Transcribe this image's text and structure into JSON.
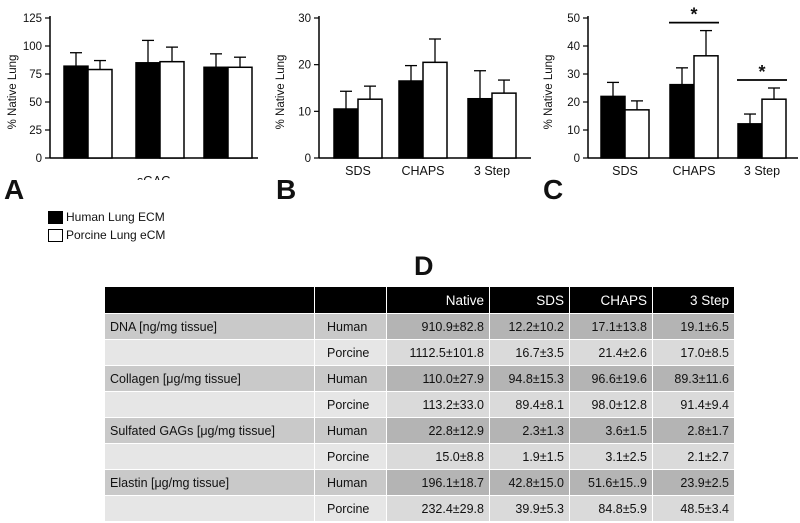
{
  "panel_letters": {
    "a": "A",
    "b": "B",
    "c": "C",
    "d": "D"
  },
  "legend": {
    "human": "Human Lung ECM",
    "porcine": "Porcine Lung eCM",
    "human_color": "#000000",
    "porcine_color": "#ffffff"
  },
  "chart_data": [
    {
      "id": "A",
      "type": "bar",
      "ylabel": "% Native Lung",
      "ylim": [
        0,
        125
      ],
      "yticks": [
        0,
        25,
        50,
        75,
        100,
        125
      ],
      "categories": [
        "",
        "",
        ""
      ],
      "xlabel": "sGAG",
      "series": [
        {
          "name": "Human Lung ECM",
          "values": [
            82,
            85,
            81
          ],
          "errors": [
            12,
            20,
            12
          ]
        },
        {
          "name": "Porcine Lung eCM",
          "values": [
            79,
            86,
            81
          ],
          "errors": [
            8,
            13,
            9
          ]
        }
      ],
      "significance": []
    },
    {
      "id": "B",
      "type": "bar",
      "ylabel": "% Native Lung",
      "ylim": [
        0,
        30
      ],
      "yticks": [
        0,
        10,
        20,
        30
      ],
      "categories": [
        "SDS",
        "CHAPS",
        "3 Step"
      ],
      "xlabel": "",
      "series": [
        {
          "name": "Human Lung ECM",
          "values": [
            10.5,
            16.5,
            12.7
          ],
          "errors": [
            3.8,
            3.3,
            6.0
          ]
        },
        {
          "name": "Porcine Lung eCM",
          "values": [
            12.6,
            20.5,
            13.9
          ],
          "errors": [
            2.8,
            5.0,
            2.8
          ]
        }
      ],
      "significance": []
    },
    {
      "id": "C",
      "type": "bar",
      "ylabel": "% Native Lung",
      "ylim": [
        0,
        50
      ],
      "yticks": [
        0,
        10,
        20,
        30,
        40,
        50
      ],
      "categories": [
        "SDS",
        "CHAPS",
        "3 Step"
      ],
      "xlabel": "",
      "series": [
        {
          "name": "Human Lung ECM",
          "values": [
            22,
            26.2,
            12.2
          ],
          "errors": [
            5,
            6,
            3.5
          ]
        },
        {
          "name": "Porcine Lung eCM",
          "values": [
            17.2,
            36.5,
            21
          ],
          "errors": [
            3.2,
            9,
            4
          ]
        }
      ],
      "significance": [
        {
          "category_index": 1,
          "label": "*"
        },
        {
          "category_index": 2,
          "label": "*"
        }
      ]
    }
  ],
  "table": {
    "headers": [
      "",
      "",
      "Native",
      "SDS",
      "CHAPS",
      "3 Step"
    ],
    "rows": [
      {
        "analyte": "DNA [ng/mg tissue]",
        "species": "Human",
        "values": [
          "910.9±82.8",
          "12.2±10.2",
          "17.1±13.8",
          "19.1±6.5"
        ]
      },
      {
        "analyte": "",
        "species": "Porcine",
        "values": [
          "1112.5±101.8",
          "16.7±3.5",
          "21.4±2.6",
          "17.0±8.5"
        ]
      },
      {
        "analyte": "Collagen [μg/mg tissue]",
        "species": "Human",
        "values": [
          "110.0±27.9",
          "94.8±15.3",
          "96.6±19.6",
          "89.3±11.6"
        ]
      },
      {
        "analyte": "",
        "species": "Porcine",
        "values": [
          "113.2±33.0",
          "89.4±8.1",
          "98.0±12.8",
          "91.4±9.4"
        ]
      },
      {
        "analyte": "Sulfated GAGs [μg/mg tissue]",
        "species": "Human",
        "values": [
          "22.8±12.9",
          "2.3±1.3",
          "3.6±1.5",
          "2.8±1.7"
        ]
      },
      {
        "analyte": "",
        "species": "Porcine",
        "values": [
          "15.0±8.8",
          "1.9±1.5",
          "3.1±2.5",
          "2.1±2.7"
        ]
      },
      {
        "analyte": "Elastin [μg/mg tissue]",
        "species": "Human",
        "values": [
          "196.1±18.7",
          "42.8±15.0",
          "51.6±15..9",
          "23.9±2.5"
        ]
      },
      {
        "analyte": "",
        "species": "Porcine",
        "values": [
          "232.4±29.8",
          "39.9±5.3",
          "84.8±5.9",
          "48.5±3.4"
        ]
      }
    ]
  }
}
